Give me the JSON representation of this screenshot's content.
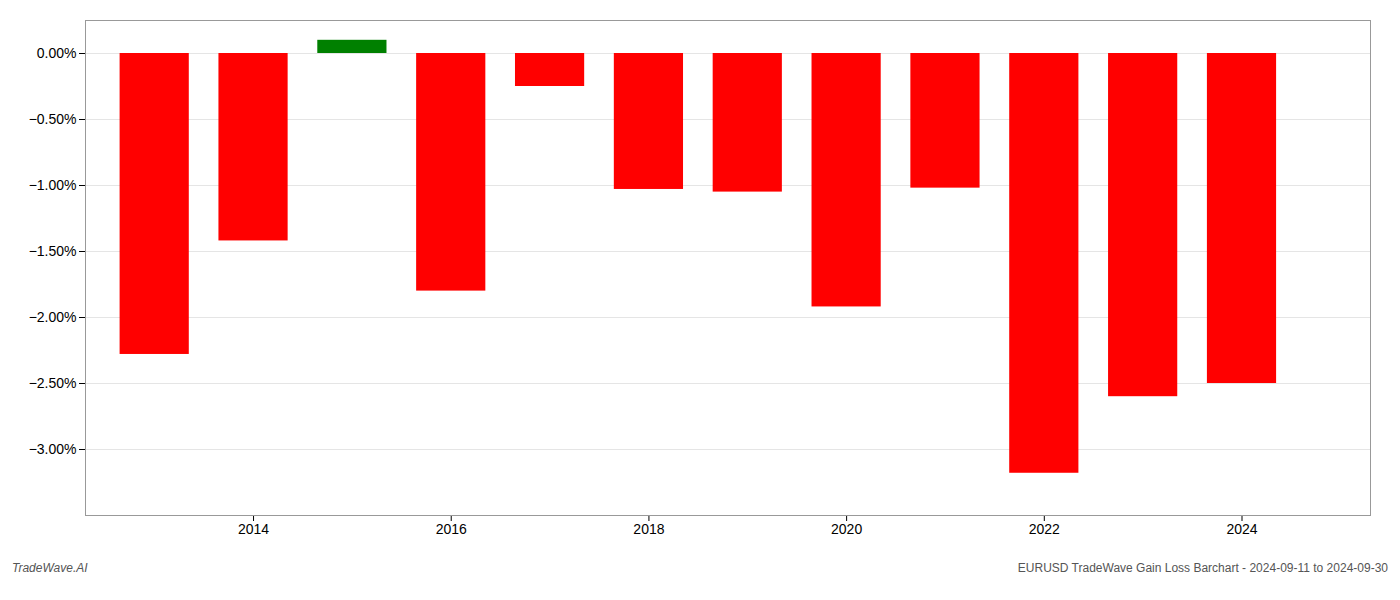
{
  "chart_data": {
    "type": "bar",
    "x": [
      2013,
      2014,
      2015,
      2016,
      2017,
      2018,
      2019,
      2020,
      2021,
      2022,
      2023,
      2024
    ],
    "values": [
      -2.28,
      -1.42,
      0.1,
      -1.8,
      -0.25,
      -1.03,
      -1.05,
      -1.92,
      -1.02,
      -3.18,
      -2.6,
      -2.5
    ],
    "colors": [
      "red",
      "red",
      "green",
      "red",
      "red",
      "red",
      "red",
      "red",
      "red",
      "red",
      "red",
      "red"
    ],
    "xlim": [
      2012.3,
      2025.3
    ],
    "xticks": [
      2014,
      2016,
      2018,
      2020,
      2022,
      2024
    ],
    "ylim": [
      -3.5,
      0.25
    ],
    "yticks": [
      {
        "value": 0.0,
        "label": "0.00%"
      },
      {
        "value": -0.5,
        "label": "−0.50%"
      },
      {
        "value": -1.0,
        "label": "−1.00%"
      },
      {
        "value": -1.5,
        "label": "−1.50%"
      },
      {
        "value": -2.0,
        "label": "−2.00%"
      },
      {
        "value": -2.5,
        "label": "−2.50%"
      },
      {
        "value": -3.0,
        "label": "−3.00%"
      }
    ],
    "grid": true,
    "annotations": [
      "TradeWave.AI",
      "EURUSD TradeWave Gain Loss Barchart - 2024-09-11 to 2024-09-30"
    ]
  }
}
